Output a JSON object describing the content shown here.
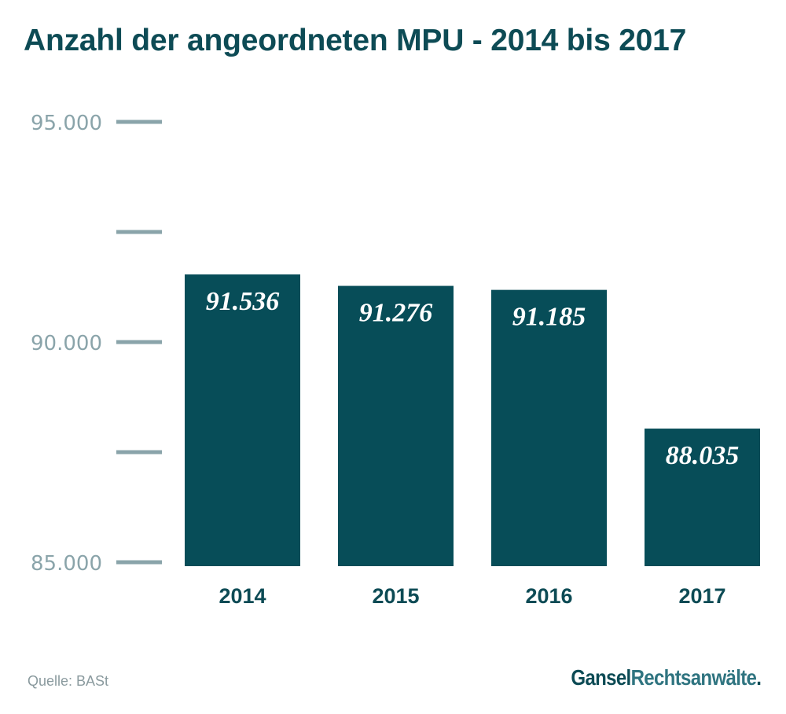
{
  "chart_data": {
    "type": "bar",
    "title": "Anzahl der angeordneten MPU - 2014 bis 2017",
    "categories": [
      "2014",
      "2015",
      "2016",
      "2017"
    ],
    "values": [
      91536,
      91276,
      91185,
      88035
    ],
    "value_labels": [
      "91.536",
      "91.276",
      "91.185",
      "88.035"
    ],
    "ylim": [
      85000,
      95000
    ],
    "yticks": [
      {
        "value": 95000,
        "label": "95.000"
      },
      {
        "value": 92500,
        "label": ""
      },
      {
        "value": 90000,
        "label": "90.000"
      },
      {
        "value": 87500,
        "label": ""
      },
      {
        "value": 85000,
        "label": "85.000"
      }
    ],
    "xlabel": "",
    "ylabel": "",
    "grid": false,
    "legend": "none",
    "colors": {
      "bar": "#074d58",
      "tick": "#8aa4aa",
      "title": "#0d4b55",
      "value_label": "#ffffff"
    }
  },
  "footer": {
    "source": "Quelle: BASt",
    "logo_part1": "Gansel",
    "logo_part2": "Rechtsanwälte",
    "logo_dot": "."
  }
}
